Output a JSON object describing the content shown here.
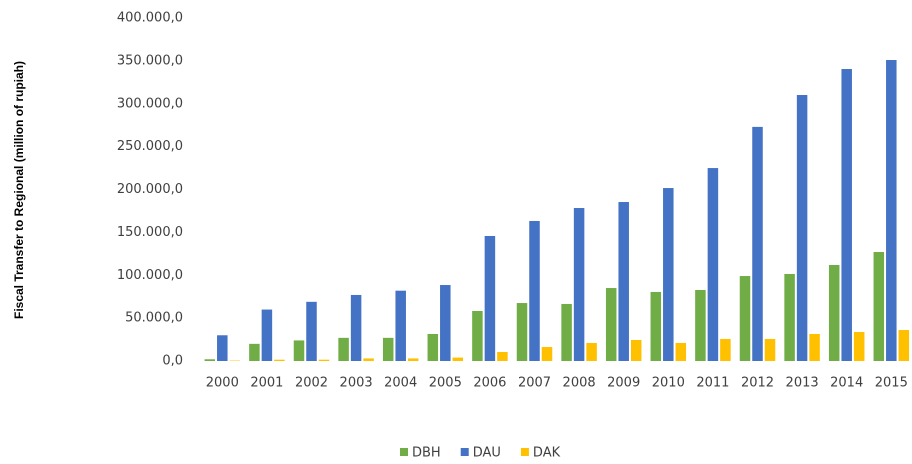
{
  "chart_data": {
    "type": "bar",
    "y_label": "Fiscal Transfer to Regional (million  of rupiah)",
    "categories": [
      "2000",
      "2001",
      "2002",
      "2003",
      "2004",
      "2005",
      "2006",
      "2007",
      "2008",
      "2009",
      "2010",
      "2011",
      "2012",
      "2013",
      "2014",
      "2015"
    ],
    "series": [
      {
        "name": "DBH",
        "color": "#70ad47",
        "values": [
          2000,
          20000,
          24000,
          27000,
          27000,
          31500,
          58300,
          67600,
          66500,
          85100,
          80500,
          82800,
          99100,
          101500,
          112000,
          127100
        ]
      },
      {
        "name": "DAU",
        "color": "#4472c4",
        "values": [
          30000,
          60000,
          69000,
          77000,
          82000,
          88600,
          145800,
          163300,
          178400,
          185400,
          201700,
          225000,
          273000,
          310200,
          340500,
          351000
        ]
      },
      {
        "name": "DAK",
        "color": "#ffc000",
        "values": [
          500,
          1500,
          1500,
          3000,
          3000,
          4000,
          10500,
          16300,
          21000,
          24500,
          21000,
          25700,
          25700,
          31500,
          33800,
          36100
        ]
      }
    ],
    "ylim": [
      0,
      400000
    ],
    "yticks": [
      {
        "value": 0,
        "label": "0,0"
      },
      {
        "value": 50000,
        "label": "50.000,0"
      },
      {
        "value": 100000,
        "label": "100.000,0"
      },
      {
        "value": 150000,
        "label": "150.000,0"
      },
      {
        "value": 200000,
        "label": "200.000,0"
      },
      {
        "value": 250000,
        "label": "250.000,0"
      },
      {
        "value": 300000,
        "label": "300.000,0"
      },
      {
        "value": 350000,
        "label": "350.000,0"
      },
      {
        "value": 400000,
        "label": "400.000,0"
      }
    ],
    "legend": "bottom"
  }
}
